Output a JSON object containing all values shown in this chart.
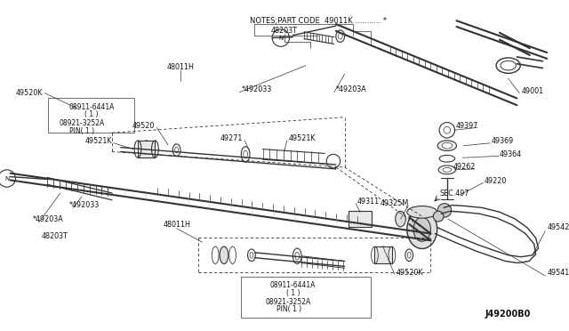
{
  "figsize": [
    6.4,
    3.72
  ],
  "dpi": 100,
  "bg": "#ffffff",
  "lc": "#333333",
  "tc": "#111111",
  "notes": "NOTES;PART CODE  49011K ........... *",
  "sub_note": "48203T",
  "diagram_id": "J49200B0"
}
